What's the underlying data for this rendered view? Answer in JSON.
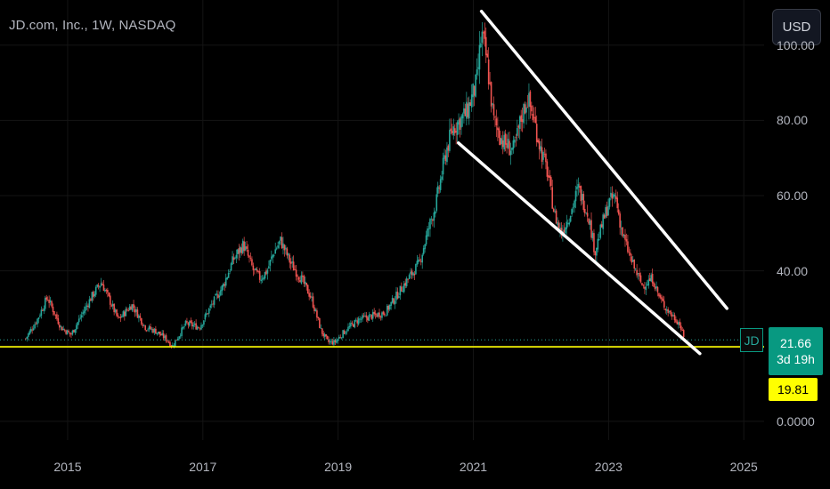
{
  "header": {
    "title": "JD.com, Inc., 1W, NASDAQ"
  },
  "toolbar": {
    "currency": "USD"
  },
  "price_scale": {
    "ticks": [
      {
        "label": "100.00",
        "value": 100
      },
      {
        "label": "80.00",
        "value": 80
      },
      {
        "label": "60.00",
        "value": 60
      },
      {
        "label": "40.00",
        "value": 40
      },
      {
        "label": "0.0000",
        "value": 0
      }
    ]
  },
  "time_scale": {
    "ticks": [
      {
        "label": "2015",
        "value": 2015
      },
      {
        "label": "2017",
        "value": 2017
      },
      {
        "label": "2019",
        "value": 2019
      },
      {
        "label": "2021",
        "value": 2021
      },
      {
        "label": "2023",
        "value": 2023
      },
      {
        "label": "2025",
        "value": 2025
      }
    ]
  },
  "symbol": "JD",
  "last_price": {
    "value": "21.66",
    "countdown": "3d 19h"
  },
  "horizontal_level": {
    "value": "19.81"
  },
  "colors": {
    "up": "#26a69a",
    "down": "#ef5350",
    "level_line": "#ffff00",
    "trendline": "#ffffff",
    "price_badge": "#089981"
  },
  "chart_data": {
    "type": "candlestick",
    "timeframe": "1W",
    "x_range": [
      2014.0,
      2025.3
    ],
    "y_range": [
      -5,
      112
    ],
    "close_path": [
      [
        2014.38,
        22
      ],
      [
        2014.55,
        27
      ],
      [
        2014.7,
        33
      ],
      [
        2014.9,
        25
      ],
      [
        2015.05,
        23
      ],
      [
        2015.2,
        28
      ],
      [
        2015.35,
        33
      ],
      [
        2015.5,
        37
      ],
      [
        2015.6,
        33
      ],
      [
        2015.75,
        27
      ],
      [
        2015.95,
        31
      ],
      [
        2016.15,
        25
      ],
      [
        2016.3,
        24
      ],
      [
        2016.45,
        22
      ],
      [
        2016.55,
        20
      ],
      [
        2016.75,
        26
      ],
      [
        2016.95,
        25
      ],
      [
        2017.1,
        30
      ],
      [
        2017.3,
        36
      ],
      [
        2017.45,
        43
      ],
      [
        2017.6,
        47
      ],
      [
        2017.75,
        40
      ],
      [
        2017.85,
        38
      ],
      [
        2017.95,
        40
      ],
      [
        2018.05,
        45
      ],
      [
        2018.15,
        48
      ],
      [
        2018.3,
        42
      ],
      [
        2018.45,
        38
      ],
      [
        2018.6,
        33
      ],
      [
        2018.75,
        24
      ],
      [
        2018.85,
        21
      ],
      [
        2018.95,
        21
      ],
      [
        2019.1,
        24
      ],
      [
        2019.3,
        27
      ],
      [
        2019.5,
        28
      ],
      [
        2019.7,
        29
      ],
      [
        2019.85,
        33
      ],
      [
        2020.0,
        37
      ],
      [
        2020.2,
        42
      ],
      [
        2020.35,
        52
      ],
      [
        2020.45,
        58
      ],
      [
        2020.6,
        72
      ],
      [
        2020.7,
        78
      ],
      [
        2020.8,
        80
      ],
      [
        2020.9,
        82
      ],
      [
        2021.05,
        90
      ],
      [
        2021.12,
        103
      ],
      [
        2021.2,
        96
      ],
      [
        2021.3,
        80
      ],
      [
        2021.45,
        74
      ],
      [
        2021.6,
        72
      ],
      [
        2021.7,
        80
      ],
      [
        2021.8,
        86
      ],
      [
        2021.9,
        80
      ],
      [
        2022.0,
        72
      ],
      [
        2022.1,
        66
      ],
      [
        2022.2,
        55
      ],
      [
        2022.3,
        50
      ],
      [
        2022.45,
        56
      ],
      [
        2022.55,
        62
      ],
      [
        2022.7,
        55
      ],
      [
        2022.8,
        45
      ],
      [
        2022.9,
        52
      ],
      [
        2023.0,
        58
      ],
      [
        2023.1,
        60
      ],
      [
        2023.2,
        50
      ],
      [
        2023.35,
        42
      ],
      [
        2023.5,
        36
      ],
      [
        2023.65,
        38
      ],
      [
        2023.75,
        33
      ],
      [
        2023.85,
        30
      ],
      [
        2023.95,
        28
      ],
      [
        2024.05,
        26
      ],
      [
        2024.12,
        21.66
      ]
    ],
    "trendlines": [
      {
        "from": [
          2021.12,
          109
        ],
        "to": [
          2024.75,
          30
        ]
      },
      {
        "from": [
          2020.78,
          74
        ],
        "to": [
          2024.35,
          18
        ]
      }
    ],
    "horizontal_line": 19.81,
    "last_value": 21.66
  }
}
